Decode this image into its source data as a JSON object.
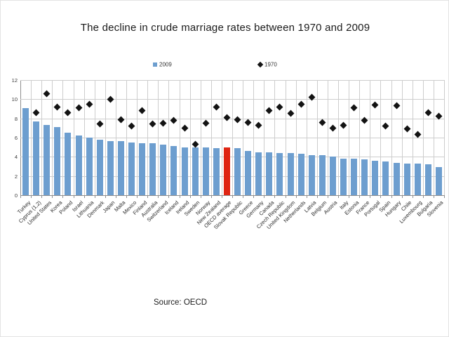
{
  "title": "The decline in crude marriage rates between 1970 and 2009",
  "source": "Source: OECD",
  "legend": {
    "label_2009": "2009",
    "label_1970": "1970"
  },
  "colors": {
    "bar_2009": "#6D9ECF",
    "bar_highlight": "#DF2512",
    "marker_1970": "#131313",
    "gridline": "#CDCDCD",
    "axis": "#8F8F8F"
  },
  "chart_data": {
    "type": "bar",
    "title": "The decline in crude marriage rates between 1970 and 2009",
    "xlabel": "",
    "ylabel": "",
    "ylim": [
      0,
      12
    ],
    "yticks": [
      0,
      2,
      4,
      6,
      8,
      10,
      12
    ],
    "grid": true,
    "legend_position": "top",
    "highlight": {
      "category": "OECD average",
      "color": "#DF2512"
    },
    "categories": [
      "Turkey",
      "Cyprus (1,2)",
      "United States",
      "Korea",
      "Poland",
      "Israel",
      "Lithuania",
      "Denmark",
      "Japan",
      "Malta",
      "Mexico",
      "Finland",
      "Australia",
      "Switzerland",
      "Iceland",
      "Ireland",
      "Sweden",
      "Norway",
      "New Zealand",
      "OECD average",
      "Slovak Republic",
      "Greece",
      "Germany",
      "Canada",
      "Czech Republic",
      "United Kingdom",
      "Netherlands",
      "Latvia",
      "Belgium",
      "Austria",
      "Italy",
      "Estonia",
      "France",
      "Portugal",
      "Spain",
      "Hungary",
      "Chile",
      "Luxembourg",
      "Bulgaria",
      "Slovenia"
    ],
    "series": [
      {
        "name": "2009",
        "type": "bar",
        "values": [
          9.1,
          7.7,
          7.3,
          7.1,
          6.5,
          6.2,
          6.0,
          5.8,
          5.6,
          5.6,
          5.5,
          5.4,
          5.4,
          5.3,
          5.1,
          5.0,
          5.0,
          5.0,
          4.9,
          5.0,
          4.9,
          4.6,
          4.5,
          4.5,
          4.4,
          4.4,
          4.3,
          4.2,
          4.2,
          4.0,
          3.8,
          3.8,
          3.7,
          3.6,
          3.5,
          3.4,
          3.3,
          3.3,
          3.2,
          2.9
        ]
      },
      {
        "name": "1970",
        "type": "scatter",
        "marker": "diamond",
        "values": [
          null,
          8.6,
          10.6,
          9.2,
          8.6,
          9.1,
          9.5,
          7.4,
          10.0,
          7.9,
          7.2,
          8.8,
          7.4,
          7.5,
          7.8,
          7.0,
          5.3,
          7.5,
          9.2,
          8.1,
          7.9,
          7.6,
          7.3,
          8.8,
          9.2,
          8.5,
          9.5,
          10.2,
          7.6,
          7.0,
          7.3,
          9.1,
          7.8,
          9.4,
          7.2,
          9.3,
          6.9,
          6.3,
          8.6,
          8.2
        ]
      }
    ]
  }
}
